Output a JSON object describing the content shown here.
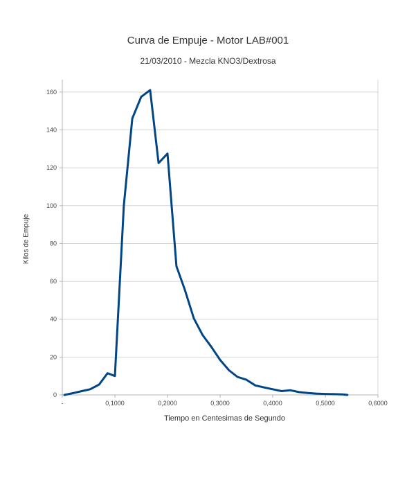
{
  "chart_data": {
    "type": "line",
    "title": "Curva de Empuje - Motor LAB#001",
    "subtitle": "21/03/2010 - Mezcla KNO3/Dextrosa",
    "xlabel": "Tiempo en Centesimas de Segundo",
    "ylabel": "Kilos de Empuje",
    "xlim": [
      0,
      0.6
    ],
    "ylim": [
      0,
      170
    ],
    "x_ticks": [
      "-",
      "0,1000",
      "0,2000",
      "0,3000",
      "0,4000",
      "0,5000",
      "0,6000"
    ],
    "x_tick_values": [
      0,
      0.1,
      0.2,
      0.3,
      0.4,
      0.5,
      0.6
    ],
    "y_ticks": [
      0,
      20,
      40,
      60,
      80,
      100,
      120,
      140,
      160
    ],
    "grid": "horizontal",
    "legend": "none",
    "line_color": "#004586",
    "series": [
      {
        "name": "Empuje",
        "x": [
          0.004,
          0.021,
          0.037,
          0.053,
          0.07,
          0.086,
          0.1,
          0.117,
          0.133,
          0.15,
          0.167,
          0.183,
          0.2,
          0.217,
          0.233,
          0.25,
          0.267,
          0.283,
          0.3,
          0.317,
          0.333,
          0.35,
          0.367,
          0.383,
          0.4,
          0.417,
          0.433,
          0.45,
          0.467,
          0.483,
          0.5,
          0.517,
          0.533,
          0.542
        ],
        "values": [
          0,
          1,
          2,
          3,
          5.5,
          11.5,
          10,
          100,
          146,
          157.5,
          161,
          122.5,
          127.5,
          68,
          55.5,
          40.5,
          31.5,
          25.5,
          18.5,
          13,
          9.5,
          8,
          5,
          4,
          3,
          2,
          2.5,
          1.5,
          1,
          0.7,
          0.5,
          0.4,
          0.3,
          0
        ]
      }
    ]
  }
}
